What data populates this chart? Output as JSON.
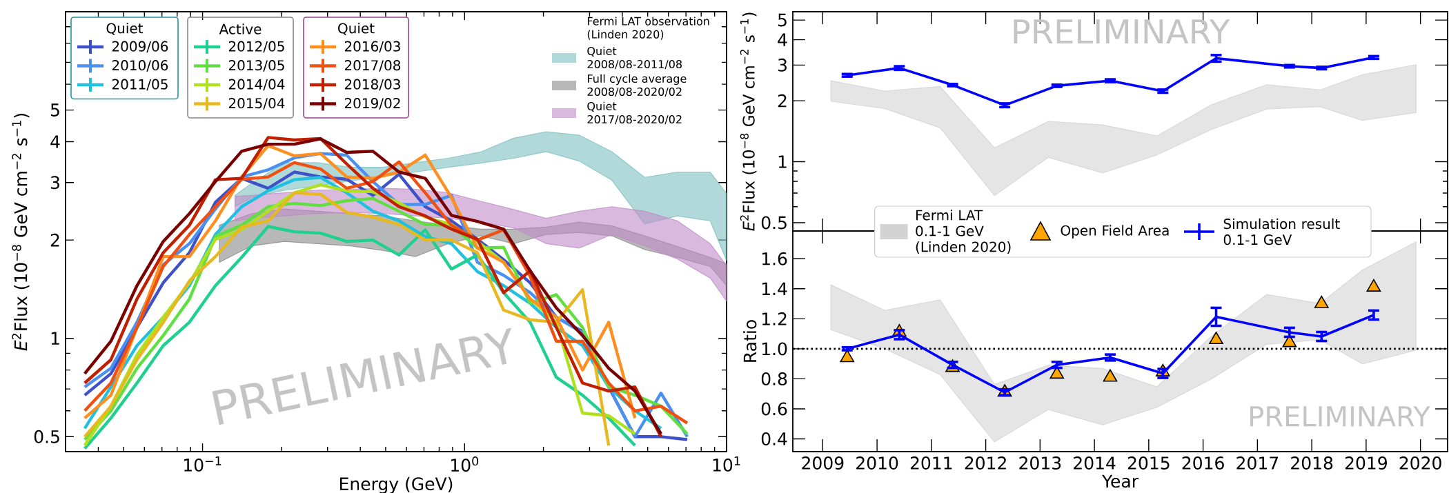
{
  "chart_data": [
    {
      "type": "line",
      "xlabel": "Energy (GeV)",
      "ylabel": "*E*$^{2}$Flux (10$^{−8}$ GeV cm$^{−2}$ s$^{−1}$)",
      "log": "xy",
      "xlim": [
        0.03,
        10
      ],
      "ylim": [
        0.45,
        10
      ],
      "xticks": [
        {
          "value": 0.04,
          "label": null
        },
        {
          "value": 0.05,
          "label": null
        },
        {
          "value": 0.06,
          "label": null
        },
        {
          "value": 0.07,
          "label": null
        },
        {
          "value": 0.08,
          "label": null
        },
        {
          "value": 0.09,
          "label": null
        },
        {
          "value": 0.1,
          "label": "10$^{−1}$"
        },
        {
          "value": 0.2,
          "label": null
        },
        {
          "value": 0.3,
          "label": null
        },
        {
          "value": 0.4,
          "label": null
        },
        {
          "value": 0.5,
          "label": null
        },
        {
          "value": 0.6,
          "label": null
        },
        {
          "value": 0.7,
          "label": null
        },
        {
          "value": 0.8,
          "label": null
        },
        {
          "value": 0.9,
          "label": null
        },
        {
          "value": 1,
          "label": "10$^{0}$"
        },
        {
          "value": 2,
          "label": null
        },
        {
          "value": 3,
          "label": null
        },
        {
          "value": 4,
          "label": null
        },
        {
          "value": 5,
          "label": null
        },
        {
          "value": 6,
          "label": null
        },
        {
          "value": 7,
          "label": null
        },
        {
          "value": 8,
          "label": null
        },
        {
          "value": 9,
          "label": null
        },
        {
          "value": 10,
          "label": "10$^{1}$"
        }
      ],
      "yticks": [
        0.5,
        {
          "value": 0.6,
          "label": null
        },
        {
          "value": 0.7,
          "label": null
        },
        {
          "value": 0.8,
          "label": null
        },
        {
          "value": 0.9,
          "label": null
        },
        1,
        2,
        3,
        4,
        5,
        {
          "value": 6,
          "label": null
        },
        {
          "value": 7,
          "label": null
        },
        {
          "value": 8,
          "label": null
        },
        {
          "value": 9,
          "label": null
        }
      ],
      "legend": "top",
      "legend_title": "Fermi LAT observation (Linden 2020)",
      "annotations": [
        "Quiet",
        "Active",
        "Quiet",
        "PRELIMINARY"
      ],
      "x": [
        0.0355,
        0.0447,
        0.0562,
        0.0708,
        0.0891,
        0.112,
        0.141,
        0.178,
        0.224,
        0.282,
        0.355,
        0.447,
        0.562,
        0.708,
        0.891,
        1.12,
        1.41,
        1.78,
        2.24,
        2.82,
        3.55,
        4.47,
        5.62,
        7.08
      ],
      "series": [
        {
          "name": "2009/06",
          "color": "#3f51c8",
          "values": [
            0.67,
            0.78,
            1.08,
            1.48,
            1.83,
            2.61,
            3.09,
            2.88,
            3.23,
            3.12,
            3.07,
            2.74,
            3.18,
            2.53,
            2.29,
            2.01,
            1.74,
            1.48,
            1.16,
            1.05,
            0.71,
            0.5,
            0.5,
            0.49
          ]
        },
        {
          "name": "2010/06",
          "color": "#4a90f0",
          "values": [
            0.71,
            0.81,
            1.12,
            1.68,
            1.95,
            2.49,
            3.12,
            3.28,
            3.57,
            3.68,
            3.64,
            3.02,
            2.57,
            2.57,
            2.74,
            1.71,
            1.56,
            1.38,
            1.16,
            1.04,
            0.71,
            0.5,
            0.68,
            0.5
          ]
        },
        {
          "name": "2011/05",
          "color": "#22c0e0",
          "values": [
            0.53,
            0.71,
            0.95,
            1.16,
            1.45,
            2.08,
            2.53,
            2.83,
            3.06,
            3.11,
            2.79,
            2.45,
            2.29,
            2.05,
            1.95,
            1.6,
            1.45,
            1.28,
            1.08,
            0.95,
            0.71,
            0.6,
            0.53,
            null
          ]
        },
        {
          "name": "2012/05",
          "color": "#20d090",
          "values": [
            0.46,
            0.57,
            0.73,
            0.95,
            1.12,
            1.45,
            1.77,
            2.2,
            2.12,
            2.1,
            1.98,
            2.0,
            1.8,
            2.15,
            1.63,
            1.8,
            1.38,
            1.12,
            0.76,
            0.67,
            0.57,
            0.47,
            null,
            null
          ]
        },
        {
          "name": "2013/05",
          "color": "#60e040",
          "values": [
            0.49,
            0.6,
            0.81,
            1.02,
            1.32,
            2.05,
            2.22,
            2.53,
            2.59,
            2.55,
            2.64,
            2.68,
            2.45,
            2.23,
            2.22,
            1.89,
            1.9,
            1.28,
            1.36,
            1.08,
            0.71,
            0.67,
            0.62,
            0.51
          ]
        },
        {
          "name": "2014/04",
          "color": "#b0e020",
          "values": [
            0.47,
            0.62,
            0.89,
            1.16,
            1.48,
            2.01,
            2.15,
            2.45,
            2.79,
            2.95,
            2.83,
            2.81,
            2.6,
            2.35,
            2.23,
            1.98,
            1.71,
            1.32,
            1.12,
            0.59,
            0.58,
            0.51,
            null,
            null
          ]
        },
        {
          "name": "2015/04",
          "color": "#e8b820",
          "values": [
            0.5,
            0.62,
            0.86,
            1.12,
            1.5,
            1.78,
            2.19,
            2.29,
            2.79,
            2.76,
            2.43,
            2.35,
            2.23,
            2.0,
            2.0,
            1.83,
            1.22,
            1.14,
            1.12,
            1.41,
            0.47,
            null,
            null,
            null
          ]
        },
        {
          "name": "2016/03",
          "color": "#ff9020",
          "values": [
            0.57,
            0.67,
            1.08,
            1.78,
            1.78,
            2.29,
            3.12,
            3.89,
            3.62,
            3.68,
            3.12,
            3.09,
            3.23,
            3.64,
            2.7,
            1.89,
            1.71,
            1.32,
            1.16,
            0.8,
            1.12,
            0.57,
            null,
            null
          ]
        },
        {
          "name": "2017/08",
          "color": "#f05010",
          "values": [
            0.6,
            0.73,
            1.08,
            1.66,
            2.08,
            2.53,
            3.07,
            3.12,
            3.45,
            3.3,
            2.88,
            3.02,
            3.47,
            2.79,
            2.22,
            2.0,
            2.15,
            1.55,
            0.98,
            0.98,
            0.73,
            0.6,
            0.62,
            0.55
          ]
        },
        {
          "name": "2018/03",
          "color": "#c02000",
          "values": [
            0.73,
            0.86,
            1.32,
            1.83,
            2.22,
            3.06,
            3.09,
            4.12,
            4.05,
            4.09,
            3.42,
            2.88,
            2.53,
            2.37,
            2.16,
            2.01,
            1.38,
            1.61,
            1.08,
            0.73,
            0.69,
            0.71,
            0.5,
            null
          ]
        },
        {
          "name": "2019/02",
          "color": "#7a0000",
          "values": [
            0.78,
            0.98,
            1.45,
            1.98,
            2.41,
            3.02,
            3.74,
            3.93,
            3.93,
            4.08,
            3.71,
            3.74,
            3.23,
            3.09,
            2.38,
            2.28,
            2.16,
            1.61,
            1.24,
            1.02,
            0.81,
            0.69,
            0.51,
            null
          ]
        },
        {
          "name": "Quiet 2008/08-2011/08",
          "type": "area",
          "color": "#7fbfc1",
          "values": [
            null,
            null,
            null,
            null,
            null,
            null,
            null,
            null,
            null,
            null,
            null,
            null,
            null,
            null,
            null,
            null,
            null
          ],
          "x": [
            0.133,
            0.154,
            0.205,
            0.274,
            0.365,
            0.487,
            0.649,
            0.866,
            1.15,
            1.54,
            2.05,
            2.74,
            3.65,
            4.87,
            6.49,
            8.66,
            10
          ],
          "upper": [
            2.74,
            2.98,
            3.45,
            3.45,
            3.34,
            3.34,
            3.45,
            3.56,
            3.72,
            4.1,
            4.29,
            4.19,
            3.73,
            3.11,
            3.23,
            3.23,
            2.77
          ],
          "lower": [
            2.53,
            2.7,
            2.84,
            2.93,
            3.03,
            3.13,
            3.23,
            3.34,
            3.44,
            3.56,
            3.73,
            3.49,
            3.05,
            2.24,
            2.37,
            2.29,
            1.73
          ]
        },
        {
          "name": "Full cycle average 2008/08-2020/02",
          "type": "area",
          "color": "#888888",
          "values": [
            null,
            null,
            null,
            null,
            null,
            null,
            null,
            null,
            null,
            null,
            null,
            null,
            null,
            null,
            null,
            null,
            null
          ],
          "x": [
            0.116,
            0.154,
            0.205,
            0.274,
            0.365,
            0.487,
            0.649,
            0.866,
            1.15,
            1.54,
            2.05,
            2.74,
            3.65,
            4.87,
            6.49,
            8.66,
            10
          ],
          "upper": [
            2.22,
            2.41,
            2.49,
            2.45,
            2.41,
            2.37,
            2.29,
            2.22,
            2.16,
            2.16,
            2.19,
            2.27,
            2.21,
            2.06,
            1.91,
            1.77,
            1.69
          ],
          "lower": [
            1.71,
            1.92,
            1.98,
            1.95,
            1.92,
            1.86,
            1.78,
            1.95,
            2.06,
            1.95,
            2.08,
            2.11,
            2.06,
            1.87,
            1.77,
            1.66,
            1.45
          ]
        },
        {
          "name": "Quiet 2017/08-2020/02",
          "type": "area",
          "color": "#c08cc8",
          "values": [
            null,
            null,
            null,
            null,
            null,
            null,
            null,
            null,
            null,
            null,
            null,
            null,
            null,
            null,
            null,
            null,
            null
          ],
          "x": [
            0.133,
            0.154,
            0.205,
            0.274,
            0.365,
            0.487,
            0.649,
            0.866,
            1.15,
            1.54,
            2.05,
            2.74,
            3.65,
            4.87,
            6.49,
            8.66,
            10
          ],
          "upper": [
            2.72,
            2.74,
            2.79,
            2.84,
            2.86,
            2.88,
            2.86,
            2.79,
            2.63,
            2.48,
            2.33,
            2.45,
            2.53,
            2.45,
            2.29,
            1.95,
            1.67
          ],
          "lower": [
            2.29,
            2.33,
            2.37,
            2.41,
            2.43,
            2.41,
            2.37,
            2.33,
            2.27,
            2.18,
            1.95,
            1.89,
            2.08,
            1.92,
            1.75,
            1.53,
            1.3
          ]
        }
      ]
    },
    {
      "type": "line",
      "ylabel": "*E*$^{2}$Flux (10$^{−8}$ GeV cm$^{−2}$ s$^{−1}$)",
      "log": "y",
      "xlim": [
        2008.45,
        2020.5
      ],
      "ylim": [
        0.455,
        5.5
      ],
      "xticks": [
        2009,
        2010,
        2011,
        2012,
        2013,
        2014,
        2015,
        2016,
        2017,
        2018,
        2019,
        2020
      ],
      "yticks": [
        0.5,
        {
          "value": 0.6,
          "label": null
        },
        {
          "value": 0.7,
          "label": null
        },
        {
          "value": 0.8,
          "label": null
        },
        {
          "value": 0.9,
          "label": null
        },
        1,
        2,
        3,
        4,
        5
      ],
      "tick_labels": "y",
      "annotations": [
        "PRELIMINARY"
      ],
      "series": [
        {
          "type": "area",
          "color": "#d3d3d3",
          "values": [
            null,
            null,
            null,
            null,
            null,
            null,
            null,
            null,
            null,
            null,
            null,
            null
          ],
          "x": [
            2009.15,
            2010.14,
            2011.16,
            2012.16,
            2013.15,
            2014.15,
            2015.15,
            2016.15,
            2017.17,
            2018.15,
            2018.93,
            2019.92
          ],
          "upper": [
            2.51,
            2.23,
            2.35,
            1.17,
            1.58,
            1.52,
            1.34,
            1.91,
            2.4,
            2.26,
            2.69,
            3.01
          ],
          "lower": [
            1.99,
            1.83,
            1.47,
            0.68,
            1.05,
            0.88,
            1.08,
            1.44,
            1.82,
            1.87,
            1.6,
            1.75
          ]
        },
        {
          "type": "line",
          "color": "#0000ff",
          "x": [
            2009.45,
            2010.41,
            2011.39,
            2012.35,
            2013.31,
            2014.29,
            2015.26,
            2016.24,
            2017.59,
            2018.18,
            2019.14
          ],
          "values": [
            2.67,
            2.9,
            2.39,
            1.9,
            2.37,
            2.51,
            2.23,
            3.24,
            2.96,
            2.9,
            3.27
          ],
          "errors": [
            0.04,
            0.06,
            0.03,
            0.04,
            0.03,
            0.04,
            0.04,
            0.12,
            0.04,
            0.04,
            0.05
          ]
        }
      ]
    },
    {
      "type": "line",
      "xlabel": "Year",
      "ylabel": "Ratio",
      "xlim": [
        2008.45,
        2020.5
      ],
      "ylim": [
        0.315,
        1.785
      ],
      "xticks": [
        2009,
        2010,
        2011,
        2012,
        2013,
        2014,
        2015,
        2016,
        2017,
        2018,
        2019,
        2020
      ],
      "yticks": [
        0.4,
        0.6,
        0.8,
        {
          "value": 1,
          "label": "1.0"
        },
        1.2,
        1.4,
        1.6
      ],
      "legend": "top",
      "annotations": [
        "PRELIMINARY"
      ],
      "ref_lines": [
        {
          "axis": "y",
          "value": 1,
          "color": "#000000",
          "line_style": "dotted"
        }
      ],
      "series": [
        {
          "name": "Fermi LAT 0.1-1 GeV (Linden 2020)",
          "type": "area",
          "color": "#d3d3d3",
          "values": [
            null,
            null,
            null,
            null,
            null,
            null,
            null,
            null,
            null,
            null,
            null,
            null
          ],
          "x": [
            2009.15,
            2010.14,
            2011.16,
            2012.16,
            2013.15,
            2014.15,
            2015.15,
            2016.15,
            2017.17,
            2018.15,
            2018.93,
            2019.92
          ],
          "upper": [
            1.426,
            1.256,
            1.326,
            0.762,
            0.89,
            0.869,
            0.747,
            1.082,
            1.362,
            1.302,
            1.524,
            1.713
          ],
          "lower": [
            1.128,
            1.0,
            0.829,
            0.379,
            0.595,
            0.494,
            0.61,
            0.799,
            1.03,
            1.061,
            0.899,
            0.991
          ]
        },
        {
          "name": "Open Field Area",
          "type": "scatter",
          "marker": "triangle",
          "color": "#ffa500",
          "x": [
            2009.45,
            2010.41,
            2011.39,
            2012.35,
            2013.31,
            2014.29,
            2015.26,
            2016.24,
            2017.59,
            2018.18,
            2019.14
          ],
          "values": [
            0.94,
            1.11,
            0.875,
            0.71,
            0.83,
            0.81,
            0.845,
            1.06,
            1.04,
            1.3,
            1.41
          ]
        },
        {
          "name": "Simulation result 0.1-1 GeV",
          "type": "line",
          "color": "#0000ff",
          "x": [
            2009.45,
            2010.41,
            2011.39,
            2012.35,
            2013.31,
            2014.29,
            2015.26,
            2016.24,
            2017.59,
            2018.18,
            2019.14
          ],
          "values": [
            1.0,
            1.094,
            0.893,
            0.71,
            0.893,
            0.942,
            0.836,
            1.213,
            1.11,
            1.082,
            1.225
          ],
          "errors": [
            0.01,
            0.03,
            0.02,
            0.02,
            0.02,
            0.02,
            0.03,
            0.06,
            0.03,
            0.03,
            0.03
          ]
        }
      ]
    }
  ]
}
